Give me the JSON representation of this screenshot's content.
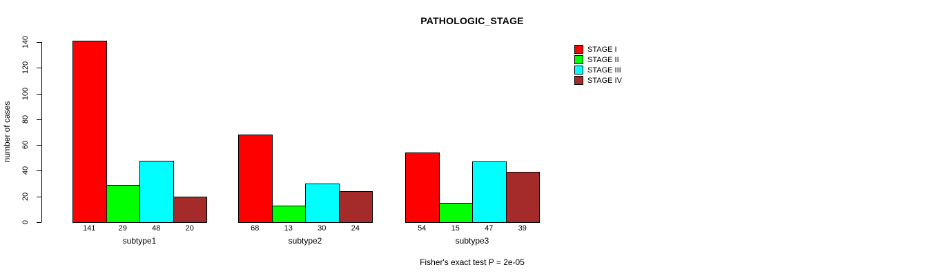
{
  "chart": {
    "title": "PATHOLOGIC_STAGE",
    "ylabel": "number of cases",
    "annotation": "Fisher's exact test P = 2e-05"
  },
  "chart_data": {
    "type": "bar",
    "title": "PATHOLOGIC_STAGE",
    "xlabel": "",
    "ylabel": "number of cases",
    "ylim": [
      0,
      140
    ],
    "yticks": [
      0,
      20,
      40,
      60,
      80,
      100,
      120,
      140
    ],
    "categories": [
      "subtype1",
      "subtype2",
      "subtype3"
    ],
    "series": [
      {
        "name": "STAGE I",
        "color": "#FF0000",
        "values": [
          141,
          68,
          54
        ]
      },
      {
        "name": "STAGE II",
        "color": "#00FF00",
        "values": [
          29,
          13,
          15
        ]
      },
      {
        "name": "STAGE III",
        "color": "#00FFFF",
        "values": [
          48,
          30,
          47
        ]
      },
      {
        "name": "STAGE IV",
        "color": "#A52A2A",
        "values": [
          20,
          24,
          39
        ]
      }
    ],
    "bar_value_labels": [
      [
        141,
        29,
        48,
        20
      ],
      [
        68,
        13,
        30,
        24
      ],
      [
        54,
        15,
        47,
        39
      ]
    ],
    "annotation": "Fisher's exact test P = 2e-05",
    "legend_position": "top-right",
    "grid": false,
    "background": "#FFFFFF",
    "bar_border_color": "#000000",
    "text_color": "#000000"
  }
}
